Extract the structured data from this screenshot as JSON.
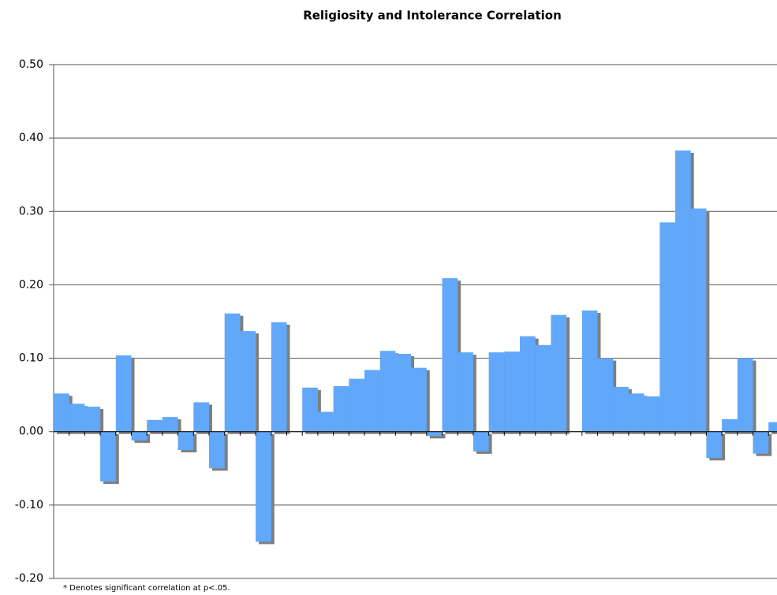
{
  "chart_data": {
    "type": "bar",
    "title": "Religiosity and Intolerance Correlation",
    "categories": [
      null,
      null,
      null,
      null,
      null,
      null,
      null,
      null,
      null,
      null,
      null,
      null,
      null,
      null,
      null,
      null,
      null,
      null,
      null,
      null,
      null,
      null,
      null,
      null,
      null,
      null,
      null,
      null,
      null,
      null,
      null,
      null,
      null,
      null,
      null,
      null,
      null,
      null,
      null,
      null,
      null,
      null,
      null,
      null,
      null,
      null,
      null
    ],
    "values": [
      0.052,
      0.038,
      0.034,
      -0.068,
      0.104,
      -0.012,
      0.016,
      0.02,
      -0.025,
      0.04,
      -0.05,
      0.161,
      0.137,
      -0.15,
      0.149,
      null,
      0.06,
      0.027,
      0.062,
      0.072,
      0.084,
      0.11,
      0.106,
      0.087,
      -0.006,
      0.209,
      0.108,
      -0.027,
      0.108,
      0.109,
      0.13,
      0.118,
      0.159,
      null,
      0.165,
      0.1,
      0.061,
      0.052,
      0.048,
      0.285,
      0.383,
      0.304,
      -0.036,
      0.017,
      0.1,
      -0.03,
      0.013
    ],
    "color": "#62a8fa",
    "ylim": [
      -0.2,
      0.5
    ],
    "yticks": [
      {
        "value": -0.2,
        "label": "-0.20"
      },
      {
        "value": -0.1,
        "label": "-0.10"
      },
      {
        "value": 0,
        "label": "0.00"
      },
      {
        "value": 0.1,
        "label": "0.10"
      },
      {
        "value": 0.2,
        "label": "0.20"
      },
      {
        "value": 0.3,
        "label": "0.30"
      },
      {
        "value": 0.4,
        "label": "0.40"
      },
      {
        "value": 0.5,
        "label": "0.50"
      }
    ],
    "grid": true,
    "footnote": "* Denotes significant correlation at p<.05."
  }
}
